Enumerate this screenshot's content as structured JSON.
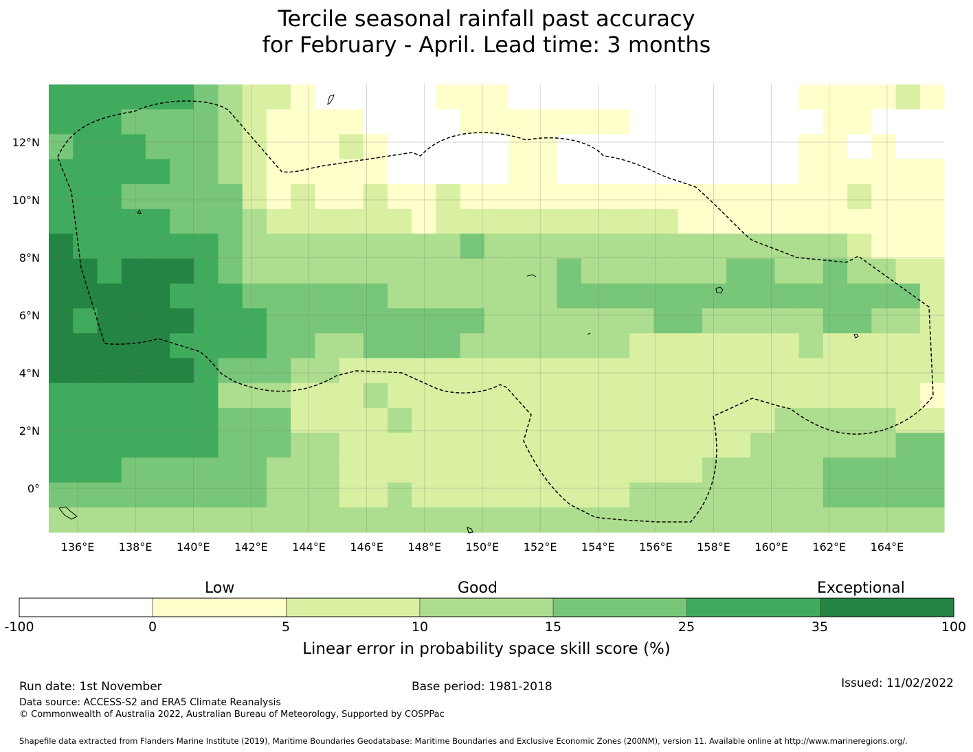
{
  "title": {
    "line1": "Tercile seasonal rainfall past accuracy",
    "line2": "for February - April. Lead time: 3 months"
  },
  "map": {
    "x_axis_labels": [
      "136°E",
      "138°E",
      "140°E",
      "142°E",
      "144°E",
      "146°E",
      "148°E",
      "150°E",
      "152°E",
      "154°E",
      "156°E",
      "158°E",
      "160°E",
      "162°E",
      "164°E"
    ],
    "y_axis_labels": [
      "12°N",
      "10°N",
      "8°N",
      "6°N",
      "4°N",
      "2°N",
      "0°"
    ],
    "x_axis_values": [
      136,
      138,
      140,
      142,
      144,
      146,
      148,
      150,
      152,
      154,
      156,
      158,
      160,
      162,
      164
    ],
    "y_axis_values": [
      12,
      10,
      8,
      6,
      4,
      2,
      0
    ],
    "lon_range": [
      135,
      166
    ],
    "lat_range": [
      -1.5,
      14
    ],
    "grid": true,
    "cell_size_deg": 0.83,
    "grid_columns": 37,
    "grid_rows": 18,
    "skill_category_grid_rows_north_to_south": [
      "5555554322100000111000000000000111121",
      "5554444321111000011111110000000011000",
      "4555444321112100000110000000000110100",
      "5555544321111100000110000000000111111",
      "5554444421211211211111111111111112111",
      "5555544432222221222222222211111111111",
      "6555555433333333343333333333333332111",
      "6656665433333333333334333333443343322",
      "6666655544444433333334444444444444442",
      "6566665554444444443333333443333344332",
      "6666655554433444433333332222222322222",
      "6666665444332222222222222222222222222",
      "5555555333222322222222222222222222221",
      "5555555444222232222222222222223333322",
      "5555555444332222222222222222233333344",
      "5554444443332222222222222223333344444",
      "4444444443332232222222223333333344444",
      "3333333333333333333333333333333333333"
    ],
    "skill_category_legend": "0 = below 0, 1 = 0-5, 2 = 5-10, 3 = 10-15, 4 = 15-25, 5 = 25-35, 6 = 35-100"
  },
  "colorbar": {
    "categories": [
      "Low",
      "Good",
      "Exceptional"
    ],
    "ticks": [
      "-100",
      "0",
      "5",
      "10",
      "15",
      "25",
      "35",
      "100"
    ],
    "colors": [
      "#ffffff",
      "#ffffcc",
      "#d9f0a3",
      "#addd8e",
      "#78c679",
      "#41ab5d",
      "#238443"
    ],
    "label": "Linear error in probability space skill score (%)"
  },
  "footer": {
    "run_date": "Run date: 1st November",
    "base_period": "Base period: 1981-2018",
    "issued": "Issued: 11/02/2022",
    "data_source": "Data source: ACCESS-S2 and ERA5 Climate Reanalysis",
    "copyright": "© Commonwealth of Australia 2022, Australian Bureau of Meteorology, Supported by COSPPac",
    "shapefile": "Shapefile data extracted from Flanders Marine Institute (2019), Maritime Boundaries Geodatabase: Maritime Boundaries and Exclusive Economic Zones (200NM), version 11. Available online at http://www.marineregions.org/."
  }
}
